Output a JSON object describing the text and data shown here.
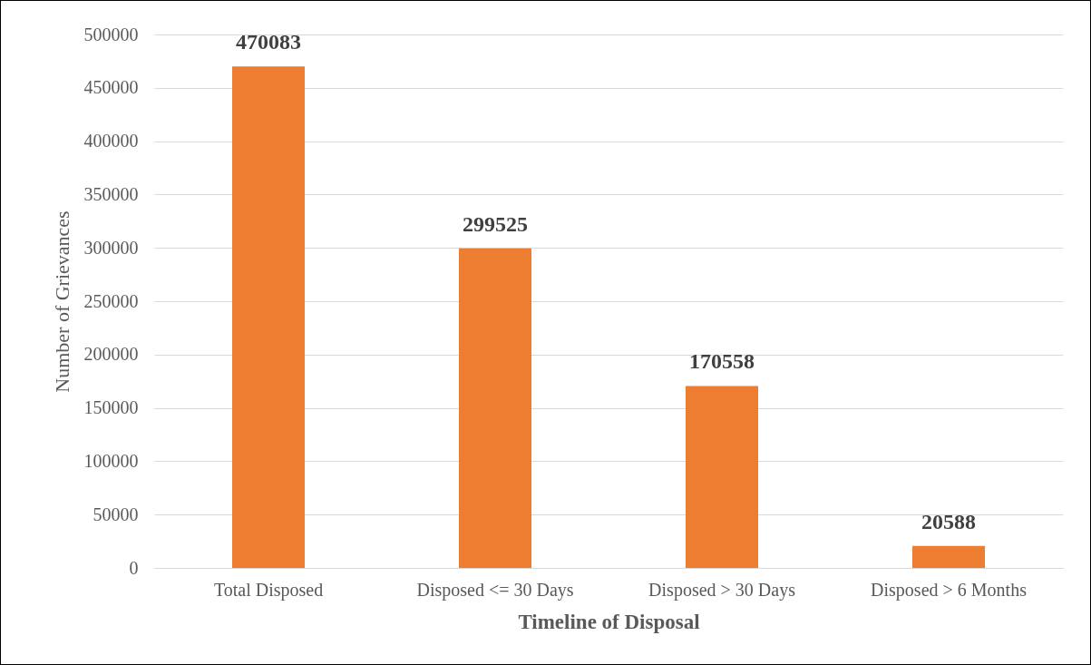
{
  "chart_data": {
    "type": "bar",
    "xlabel": "Timeline of Disposal",
    "ylabel": "Number of Grievances",
    "categories": [
      "Total Disposed",
      "Disposed <= 30 Days",
      "Disposed > 30 Days",
      "Disposed > 6 Months"
    ],
    "values": [
      470083,
      299525,
      170558,
      20588
    ],
    "color": "#ed7d31",
    "ylim": [
      0,
      500000
    ],
    "yticks": [
      0,
      50000,
      100000,
      150000,
      200000,
      250000,
      300000,
      350000,
      400000,
      450000,
      500000
    ],
    "grid": "y",
    "data_labels": true
  }
}
